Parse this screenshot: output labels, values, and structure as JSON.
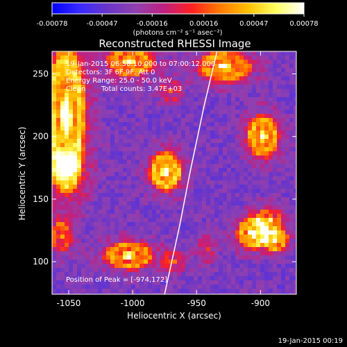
{
  "chart_data": {
    "type": "heatmap",
    "title": "Reconstructed RHESSI Image",
    "xlabel": "Heliocentric X (arcsec)",
    "ylabel": "Heliocentric Y (arcsec)",
    "xlim": [
      -1063,
      -872
    ],
    "ylim": [
      74,
      268
    ],
    "x_ticks": [
      "-1050",
      "-1000",
      "-950",
      "-900"
    ],
    "x_tick_values": [
      -1050,
      -1000,
      -950,
      -900
    ],
    "y_ticks": [
      "100",
      "150",
      "200",
      "250"
    ],
    "y_tick_values": [
      100,
      150,
      200,
      250
    ],
    "colorbar": {
      "min": -0.00078,
      "max": 0.00078,
      "ticks": [
        "-0.00078",
        "-0.00047",
        "-0.00016",
        "0.00016",
        "0.00047",
        "0.00078"
      ],
      "tick_values": [
        -0.00078,
        -0.00047,
        -0.00016,
        0.00016,
        0.00047,
        0.00078
      ],
      "unit_label": "(photons cm⁻² s⁻¹ asec⁻²)"
    },
    "annotations": {
      "time": "19-Jan-2015 06:56:10.000 to 07:00:12.000",
      "detectors": "Detectors: 3F 6F 9F, Att 0",
      "energy": "Energy Range: 25.0 - 50.0 keV",
      "clean": "Clean",
      "counts": "Total counts: 3.47E+03",
      "peak": "Position of Peak = [-974,172]"
    },
    "peak_position": [
      -974,
      172
    ],
    "limb_curve": [
      [
        -975,
        74
      ],
      [
        -963,
        130
      ],
      [
        -955,
        172
      ],
      [
        -944,
        225
      ],
      [
        -934,
        268
      ]
    ],
    "sources": [
      {
        "x": -1052,
        "y": 218,
        "sx": 11,
        "sy": 40,
        "amp": 1.0
      },
      {
        "x": -1052,
        "y": 172,
        "sx": 9,
        "sy": 12,
        "amp": 0.55
      },
      {
        "x": -1002,
        "y": 260,
        "sx": 13,
        "sy": 9,
        "amp": 0.8
      },
      {
        "x": -928,
        "y": 256,
        "sx": 15,
        "sy": 9,
        "amp": 0.8
      },
      {
        "x": -974,
        "y": 172,
        "sx": 9,
        "sy": 11,
        "amp": 0.95
      },
      {
        "x": -970,
        "y": 236,
        "sx": 7,
        "sy": 7,
        "amp": 0.35
      },
      {
        "x": -898,
        "y": 200,
        "sx": 9,
        "sy": 12,
        "amp": 0.9
      },
      {
        "x": -893,
        "y": 133,
        "sx": 8,
        "sy": 8,
        "amp": 0.5
      },
      {
        "x": -906,
        "y": 123,
        "sx": 9,
        "sy": 9,
        "amp": 0.9
      },
      {
        "x": -888,
        "y": 117,
        "sx": 7,
        "sy": 7,
        "amp": 0.75
      },
      {
        "x": -1003,
        "y": 105,
        "sx": 14,
        "sy": 8,
        "amp": 0.8
      },
      {
        "x": -968,
        "y": 100,
        "sx": 7,
        "sy": 7,
        "amp": 0.35
      },
      {
        "x": -1056,
        "y": 120,
        "sx": 6,
        "sy": 9,
        "amp": 0.55
      },
      {
        "x": -942,
        "y": 110,
        "sx": 6,
        "sy": 8,
        "amp": 0.3
      }
    ]
  },
  "footer_date": "19-Jan-2015 00:19",
  "colors": {
    "background": "#000000",
    "text": "#ffffff",
    "limb": "#ffffff",
    "colormap": [
      "#0000ff",
      "#3a2aff",
      "#6a36c8",
      "#9040b0",
      "#c02080",
      "#ff2020",
      "#ff7a00",
      "#ffc000",
      "#ffff60",
      "#ffffff"
    ]
  }
}
